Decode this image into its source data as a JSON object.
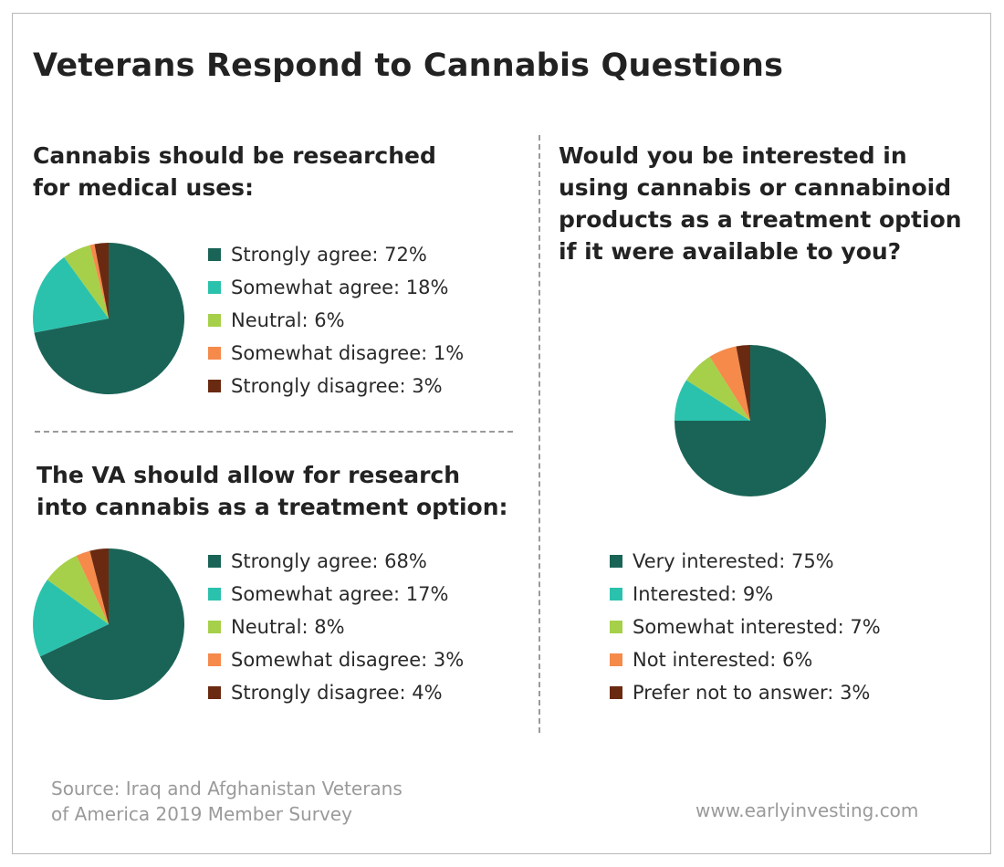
{
  "title": "Veterans Respond to Cannabis Questions",
  "colors": {
    "strong_positive": "#1a6457",
    "positive": "#2bc2ad",
    "neutral": "#a6d049",
    "negative": "#f58a4b",
    "strong_negative": "#6a2a12"
  },
  "chart_data": [
    {
      "type": "pie",
      "title_lines": [
        "Cannabis should be researched",
        "for medical uses:"
      ],
      "categories": [
        "Strongly agree",
        "Somewhat agree",
        "Neutral",
        "Somewhat disagree",
        "Strongly disagree"
      ],
      "values": [
        72,
        18,
        6,
        1,
        3
      ],
      "legend_labels": [
        "Strongly agree: 72%",
        "Somewhat agree: 18%",
        "Neutral: 6%",
        "Somewhat disagree: 1%",
        "Strongly disagree: 3%"
      ],
      "colors": [
        "#1a6457",
        "#2bc2ad",
        "#a6d049",
        "#f58a4b",
        "#6a2a12"
      ],
      "legend": "right"
    },
    {
      "type": "pie",
      "title_lines": [
        "The VA should allow for research",
        "into cannabis as a treatment option:"
      ],
      "categories": [
        "Strongly agree",
        "Somewhat agree",
        "Neutral",
        "Somewhat disagree",
        "Strongly disagree"
      ],
      "values": [
        68,
        17,
        8,
        3,
        4
      ],
      "legend_labels": [
        "Strongly agree: 68%",
        "Somewhat agree: 17%",
        "Neutral: 8%",
        "Somewhat disagree: 3%",
        "Strongly disagree: 4%"
      ],
      "colors": [
        "#1a6457",
        "#2bc2ad",
        "#a6d049",
        "#f58a4b",
        "#6a2a12"
      ],
      "legend": "right"
    },
    {
      "type": "pie",
      "title_lines": [
        "Would you be interested in",
        "using cannabis or cannabinoid",
        "products as a treatment option",
        "if it were available to you?"
      ],
      "categories": [
        "Very interested",
        "Interested",
        "Somewhat interested",
        "Not interested",
        "Prefer not to answer"
      ],
      "values": [
        75,
        9,
        7,
        6,
        3
      ],
      "legend_labels": [
        "Very interested: 75%",
        "Interested: 9%",
        "Somewhat interested: 7%",
        "Not interested: 6%",
        "Prefer not to answer: 3%"
      ],
      "colors": [
        "#1a6457",
        "#2bc2ad",
        "#a6d049",
        "#f58a4b",
        "#6a2a12"
      ],
      "legend": "bottom"
    }
  ],
  "source_lines": [
    "Source: Iraq and Afghanistan Veterans",
    "of America 2019 Member Survey"
  ],
  "website": "www.earlyinvesting.com"
}
